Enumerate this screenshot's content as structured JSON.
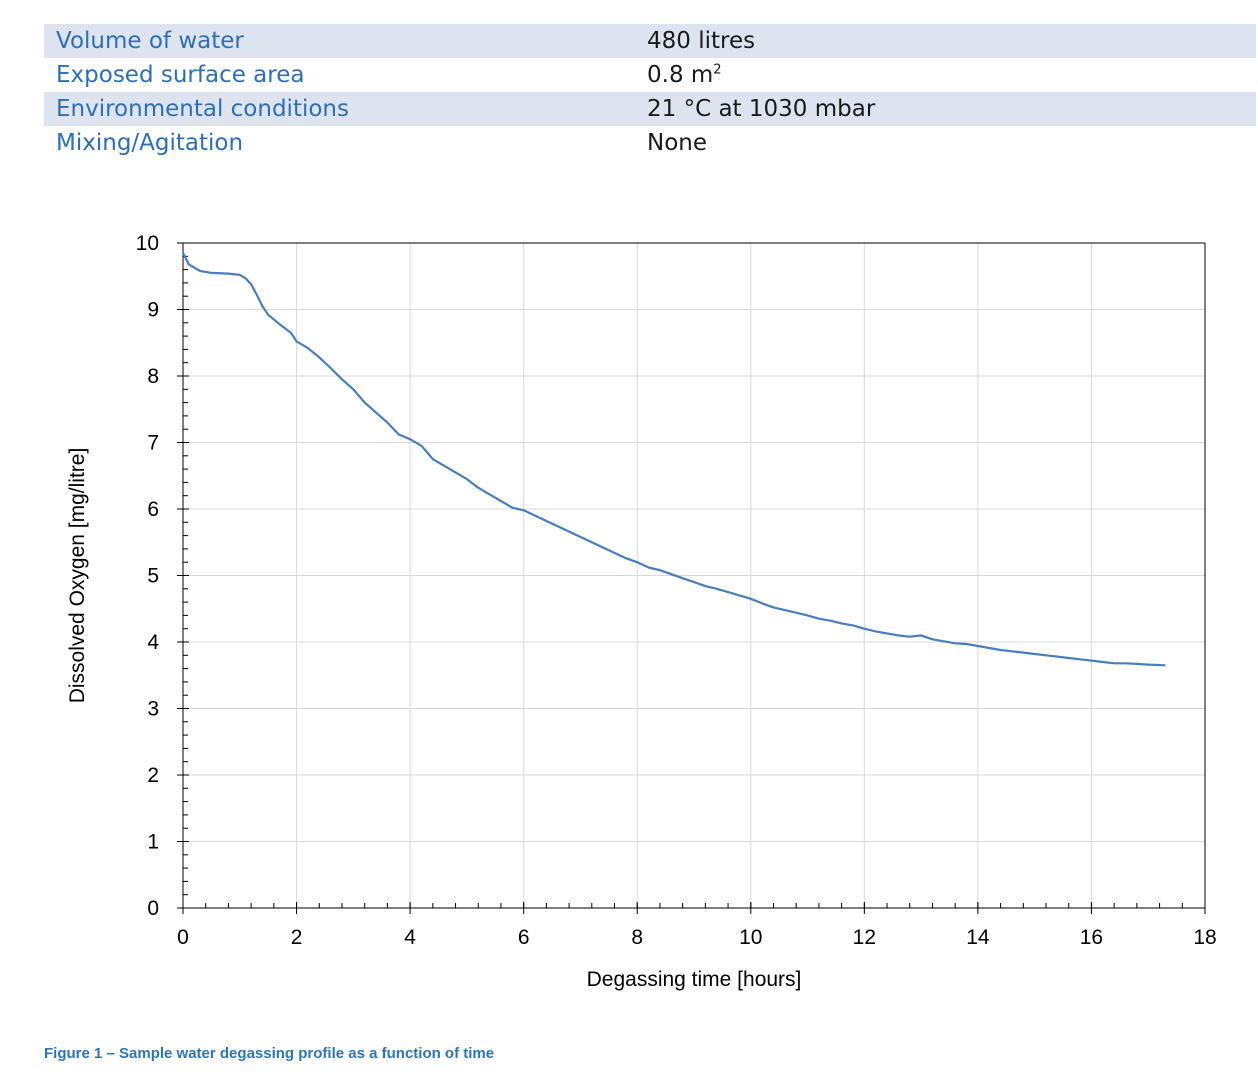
{
  "parameters": [
    {
      "label": "Volume of water",
      "value": "480 litres"
    },
    {
      "label": "Exposed surface area",
      "value": "0.8 m",
      "sup": "2"
    },
    {
      "label": "Environmental conditions",
      "value": "21 °C at 1030 mbar"
    },
    {
      "label": "Mixing/Agitation",
      "value": "None"
    }
  ],
  "colors": {
    "line": "#4a7ebb",
    "label": "#2e6fb1",
    "row_shade": "#dde4f0",
    "caption": "#2e75b6"
  },
  "caption": "Figure 1 – Sample water degassing profile as a function of time",
  "chart_data": {
    "type": "line",
    "xlabel": "Degassing time [hours]",
    "ylabel": "Dissolved Oxygen [mg/litre]",
    "xlim": [
      0,
      18
    ],
    "ylim": [
      0,
      10
    ],
    "xticks": [
      0,
      2,
      4,
      6,
      8,
      10,
      12,
      14,
      16,
      18
    ],
    "yticks": [
      0,
      1,
      2,
      3,
      4,
      5,
      6,
      7,
      8,
      9,
      10
    ],
    "grid": true,
    "legend": "none",
    "series": [
      {
        "x": [
          0,
          0.1,
          0.3,
          0.5,
          0.8,
          1.0,
          1.1,
          1.2,
          1.3,
          1.4,
          1.5,
          1.7,
          1.9,
          2.0,
          2.2,
          2.4,
          2.6,
          2.8,
          3.0,
          3.2,
          3.4,
          3.6,
          3.8,
          4.0,
          4.2,
          4.4,
          4.6,
          4.8,
          5.0,
          5.2,
          5.4,
          5.6,
          5.8,
          6.0,
          6.2,
          6.4,
          6.6,
          6.8,
          7.0,
          7.2,
          7.4,
          7.6,
          7.8,
          8.0,
          8.2,
          8.4,
          8.6,
          8.8,
          9.0,
          9.2,
          9.4,
          9.6,
          9.8,
          10.0,
          10.2,
          10.4,
          10.6,
          10.8,
          11.0,
          11.2,
          11.4,
          11.6,
          11.8,
          12.0,
          12.2,
          12.4,
          12.6,
          12.8,
          13.0,
          13.2,
          13.4,
          13.6,
          13.8,
          14.0,
          14.2,
          14.4,
          14.6,
          14.8,
          15.0,
          15.2,
          15.4,
          15.6,
          15.8,
          16.0,
          16.2,
          16.4,
          16.6,
          16.8,
          17.0,
          17.3
        ],
        "values": [
          9.85,
          9.68,
          9.58,
          9.55,
          9.54,
          9.52,
          9.47,
          9.38,
          9.22,
          9.05,
          8.92,
          8.78,
          8.65,
          8.52,
          8.42,
          8.28,
          8.12,
          7.95,
          7.8,
          7.6,
          7.45,
          7.3,
          7.12,
          7.05,
          6.95,
          6.75,
          6.65,
          6.55,
          6.45,
          6.32,
          6.22,
          6.12,
          6.02,
          5.98,
          5.9,
          5.82,
          5.74,
          5.66,
          5.58,
          5.5,
          5.42,
          5.34,
          5.26,
          5.2,
          5.12,
          5.08,
          5.02,
          4.96,
          4.9,
          4.84,
          4.8,
          4.75,
          4.7,
          4.65,
          4.58,
          4.52,
          4.48,
          4.44,
          4.4,
          4.35,
          4.32,
          4.28,
          4.25,
          4.2,
          4.16,
          4.13,
          4.1,
          4.08,
          4.1,
          4.04,
          4.01,
          3.98,
          3.97,
          3.94,
          3.91,
          3.88,
          3.86,
          3.84,
          3.82,
          3.8,
          3.78,
          3.76,
          3.74,
          3.72,
          3.7,
          3.68,
          3.68,
          3.67,
          3.66,
          3.65
        ]
      }
    ]
  }
}
